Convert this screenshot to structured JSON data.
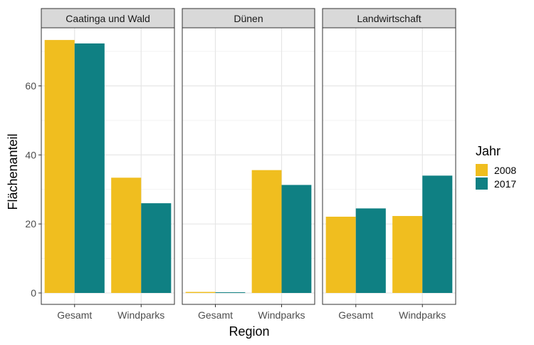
{
  "chart_data": {
    "type": "bar",
    "xlabel": "Region",
    "ylabel": "Flächenanteil",
    "ylim": [
      0,
      76
    ],
    "yticks": [
      0,
      20,
      40,
      60
    ],
    "grid": true,
    "legend": {
      "title": "Jahr",
      "position": "right",
      "items": [
        {
          "label": "2008",
          "color": "#F0BE1F"
        },
        {
          "label": "2017",
          "color": "#0F8083"
        }
      ]
    },
    "facets": [
      {
        "label": "Caatinga und Wald",
        "categories": [
          "Gesamt",
          "Windparks"
        ],
        "series": [
          {
            "name": "2008",
            "values": [
              73.3,
              33.4
            ]
          },
          {
            "name": "2017",
            "values": [
              72.3,
              26.0
            ]
          }
        ]
      },
      {
        "label": "Dünen",
        "categories": [
          "Gesamt",
          "Windparks"
        ],
        "series": [
          {
            "name": "2008",
            "values": [
              0.3,
              35.6
            ]
          },
          {
            "name": "2017",
            "values": [
              0.2,
              31.3
            ]
          }
        ]
      },
      {
        "label": "Landwirtschaft",
        "categories": [
          "Gesamt",
          "Windparks"
        ],
        "series": [
          {
            "name": "2008",
            "values": [
              22.1,
              22.3
            ]
          },
          {
            "name": "2017",
            "values": [
              24.5,
              34.0
            ]
          }
        ]
      }
    ]
  }
}
